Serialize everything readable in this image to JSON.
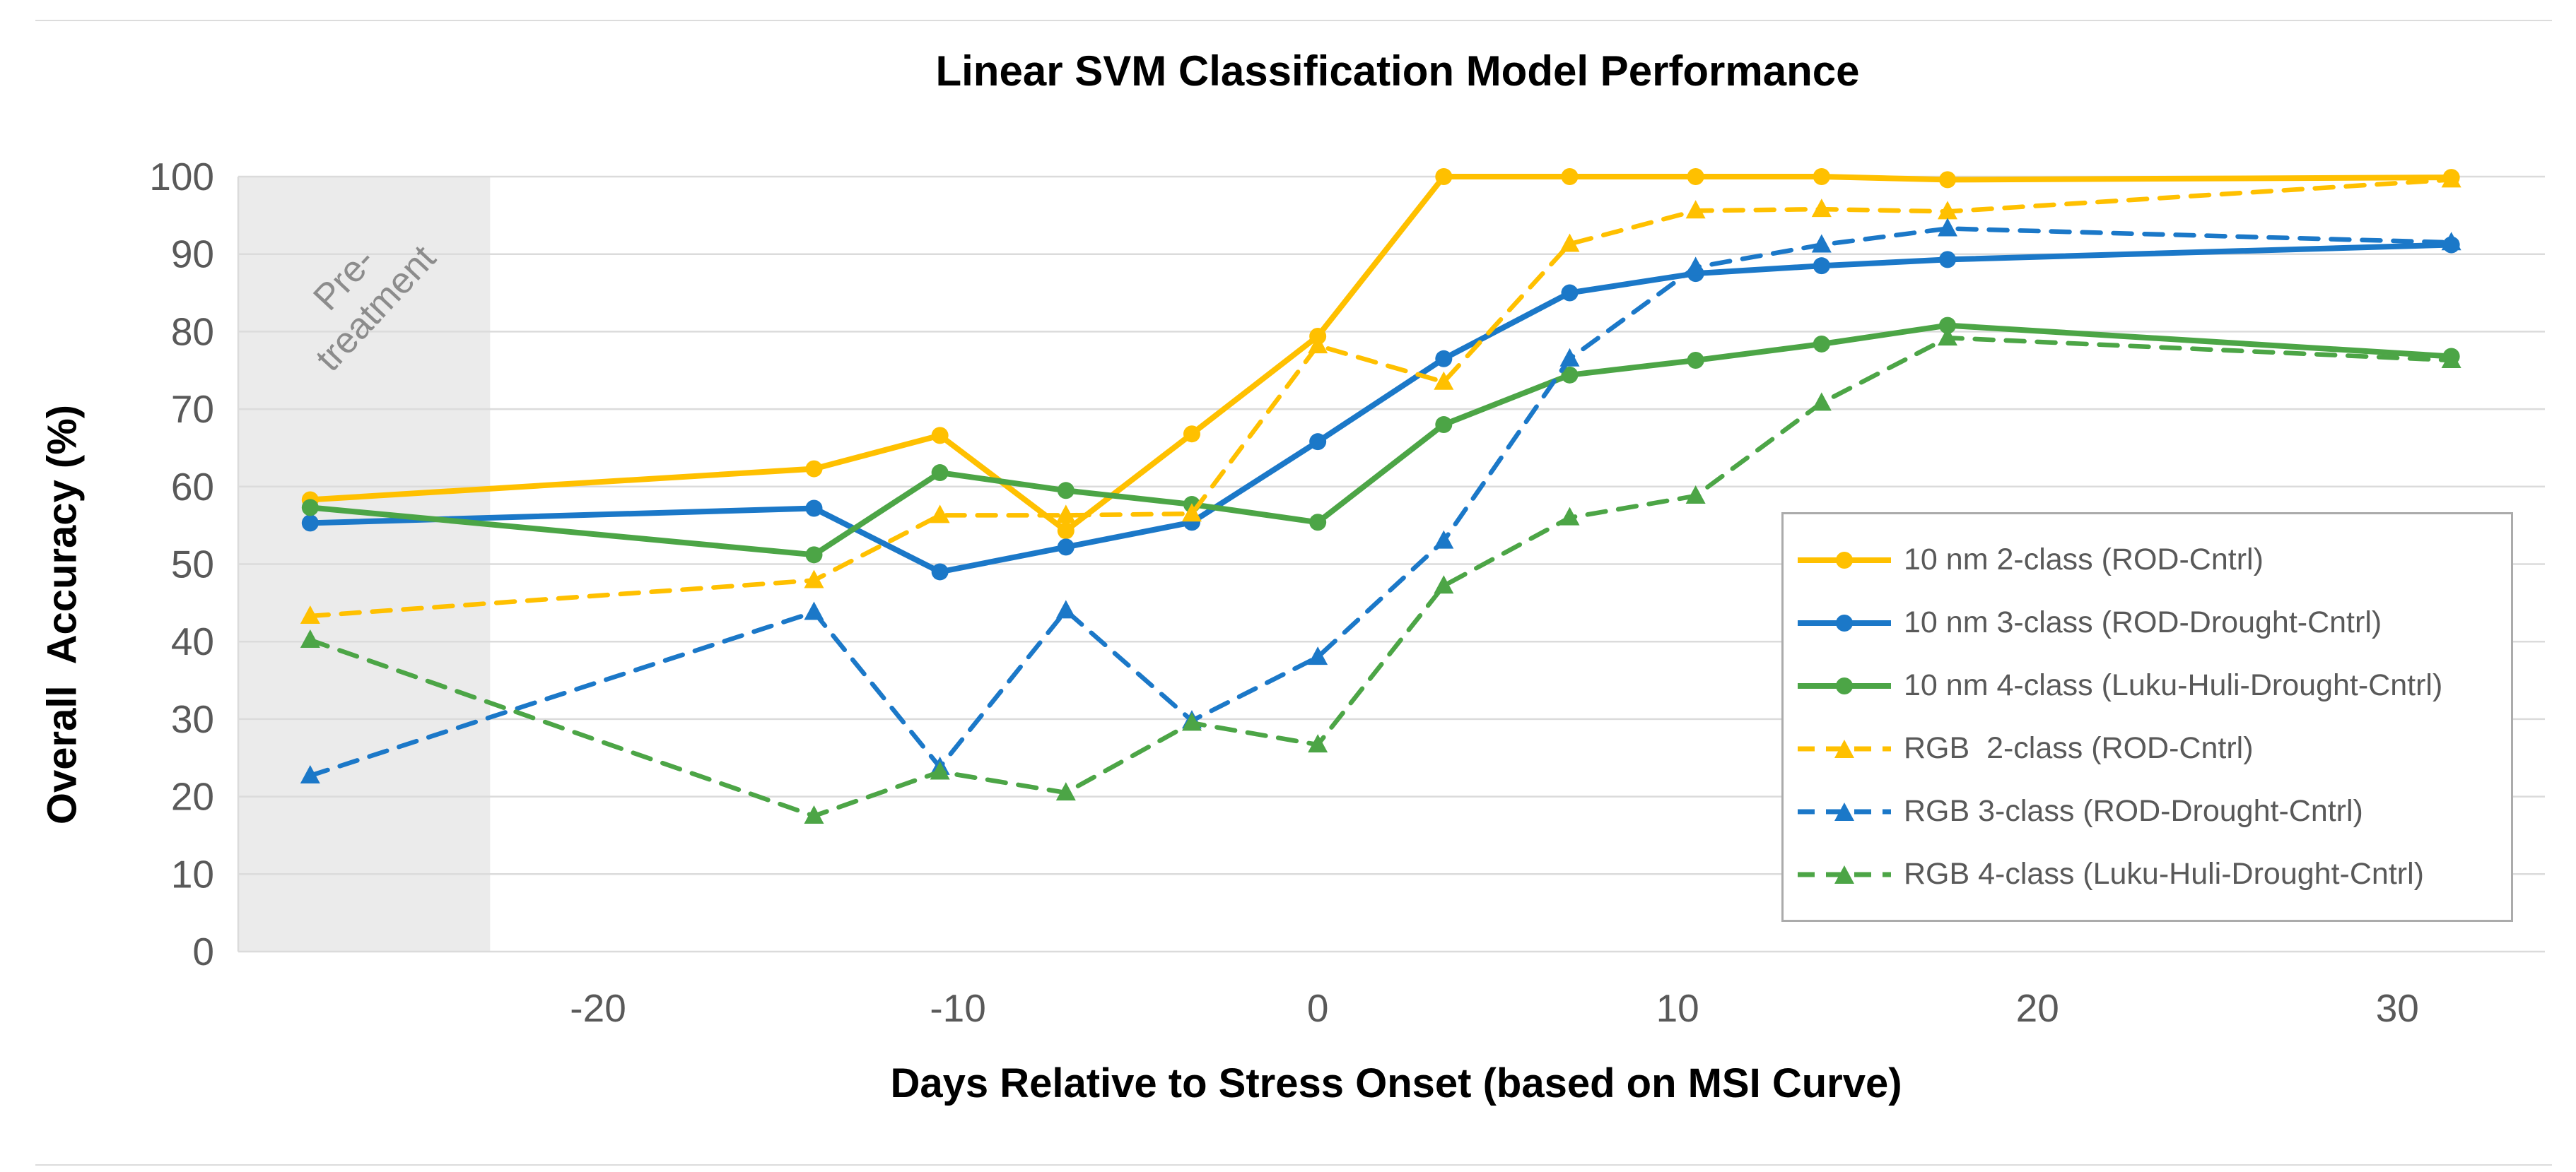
{
  "chart_data": {
    "type": "line",
    "title": "Linear SVM Classification Model Performance",
    "xlabel": "Days Relative to Stress Onset (based on MSI Curve)",
    "ylabel": "Overall  Accuracy (%)",
    "xlim": [
      -30,
      34.1
    ],
    "ylim": [
      0,
      100
    ],
    "x_ticks": [
      -20,
      -10,
      0,
      10,
      20,
      30
    ],
    "y_ticks": [
      0,
      10,
      20,
      30,
      40,
      50,
      60,
      70,
      80,
      90,
      100
    ],
    "grid": true,
    "legend_position": "inside-right",
    "annotation_region": {
      "label_line1": "Pre-",
      "label_line2": "treatment",
      "x_start": -30,
      "x_end": -23,
      "fill": "#ebebeb",
      "text_color": "#8c8c8c"
    },
    "x": [
      -28,
      -14,
      -10.5,
      -7,
      -3.5,
      0,
      3.5,
      7,
      10.5,
      14,
      17.5,
      31.5
    ],
    "series": [
      {
        "name": "10 nm 2-class (ROD-Cntrl)",
        "sensor": "10 nm",
        "line_style": "solid",
        "marker": "circle",
        "color": "#FFC000",
        "values": [
          58.3,
          62.3,
          66.6,
          54.3,
          66.8,
          79.4,
          100,
          100,
          100,
          100,
          99.6,
          99.9
        ]
      },
      {
        "name": "10 nm 3-class (ROD-Drought-Cntrl)",
        "sensor": "10 nm",
        "line_style": "solid",
        "marker": "circle",
        "color": "#1B78C8",
        "values": [
          55.3,
          57.2,
          49,
          52.2,
          55.4,
          65.8,
          76.5,
          85,
          87.5,
          88.5,
          89.3,
          91.2
        ]
      },
      {
        "name": "10 nm 4-class (Luku-Huli-Drought-Cntrl)",
        "sensor": "10 nm",
        "line_style": "solid",
        "marker": "circle",
        "color": "#4CA546",
        "values": [
          57.3,
          51.2,
          61.8,
          59.5,
          57.7,
          55.4,
          68,
          74.4,
          76.3,
          78.4,
          80.8,
          76.8
        ]
      },
      {
        "name": "RGB  2-class (ROD-Cntrl)",
        "sensor": "RGB",
        "line_style": "dashed",
        "marker": "triangle",
        "color": "#FFC000",
        "values": [
          43.3,
          47.9,
          56.3,
          56.3,
          56.5,
          78.2,
          73.5,
          91.3,
          95.6,
          95.8,
          95.5,
          99.6
        ]
      },
      {
        "name": "RGB 3-class (ROD-Drought-Cntrl)",
        "sensor": "RGB",
        "line_style": "dashed",
        "marker": "triangle",
        "color": "#1B78C8",
        "values": [
          22.7,
          43.8,
          23.8,
          44,
          29.8,
          38,
          53,
          76.5,
          88.3,
          91.2,
          93.3,
          91.5
        ]
      },
      {
        "name": "RGB 4-class (Luku-Huli-Drought-Cntrl)",
        "sensor": "RGB",
        "line_style": "dashed",
        "marker": "triangle",
        "color": "#4CA546",
        "values": [
          40.2,
          17.5,
          23.2,
          20.5,
          29.5,
          26.7,
          47.2,
          56,
          58.8,
          70.8,
          79.2,
          76.3
        ]
      }
    ]
  },
  "style": {
    "grid_color": "#dbdbdb",
    "tick_text_color": "#595959",
    "legend_border_color": "#ababab",
    "legend_text_color": "#595959"
  }
}
